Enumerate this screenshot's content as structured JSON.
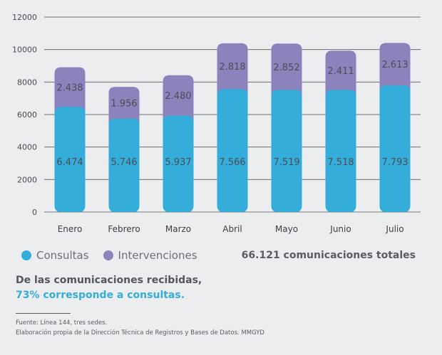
{
  "chart_data": {
    "type": "bar",
    "stacked": true,
    "categories": [
      "Enero",
      "Febrero",
      "Marzo",
      "Abril",
      "Mayo",
      "Junio",
      "Julio"
    ],
    "series": [
      {
        "name": "Consultas",
        "color": "#34ADDB",
        "values": [
          6474,
          5746,
          5937,
          7566,
          7519,
          7518,
          7793
        ],
        "labels": [
          "6.474",
          "5.746",
          "5.937",
          "7.566",
          "7.519",
          "7.518",
          "7.793"
        ]
      },
      {
        "name": "Intervenciones",
        "color": "#8C82BC",
        "values": [
          2438,
          1956,
          2480,
          2818,
          2852,
          2411,
          2613
        ],
        "labels": [
          "2.438",
          "1.956",
          "2.480",
          "2.818",
          "2.852",
          "2.411",
          "2.613"
        ]
      }
    ],
    "yticks": [
      0,
      2000,
      4000,
      6000,
      8000,
      10000,
      12000
    ],
    "ylim": [
      0,
      12000
    ],
    "grid": true,
    "title": "",
    "xlabel": "",
    "ylabel": "",
    "legend_position": "bottom-left"
  },
  "legend": {
    "items": [
      {
        "label": "Consultas",
        "color": "#34ADDB"
      },
      {
        "label": "Intervenciones",
        "color": "#8C82BC"
      }
    ]
  },
  "total_text": "66.121 comunicaciones totales",
  "summary": {
    "line1": "De las comunicaciones recibidas,",
    "line2": "73% corresponde a consultas."
  },
  "source": {
    "line1": "Fuente: Línea 144, tres sedes.",
    "line2": "Elaboración propia de la Dirección Técnica de Registros y Bases de Datos. MMGYD"
  }
}
